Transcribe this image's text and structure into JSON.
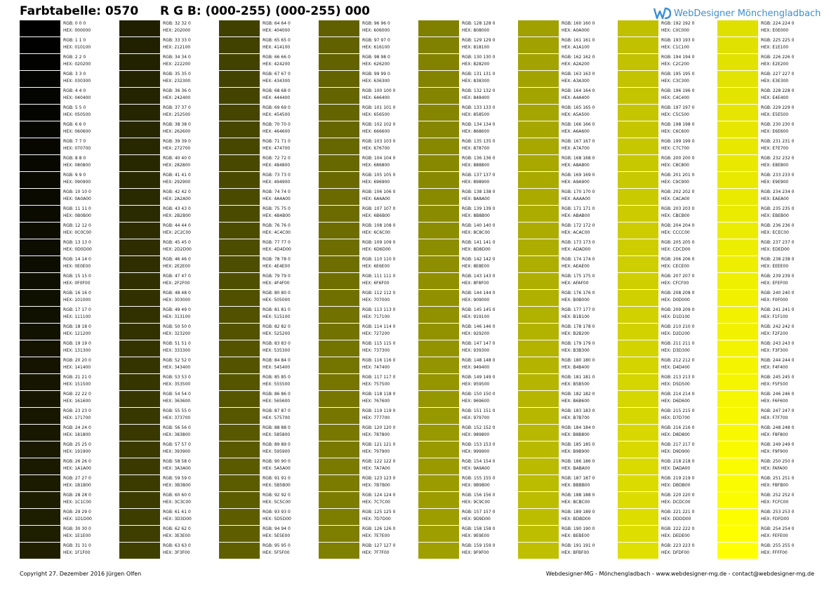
{
  "header": {
    "title": "Farbtabelle: 0570",
    "rgb_range": "R G B: (000-255) (000-255) 000",
    "logo_text": "WebDesigner Mönchengladbach",
    "logo_icon": "wd-logo-icon",
    "logo_color": "#3d8fd4"
  },
  "palette": {
    "columns": 8,
    "rows_per_column": 32,
    "start": 0,
    "end": 255,
    "blue": 0,
    "rgb_prefix": "RGB:",
    "hex_prefix": "HEX:"
  },
  "footer": {
    "copyright": "Copyright 27. Dezember 2016 Jürgen Olfen",
    "contact": "Webdesigner-MG - Mönchengladbach - www.webdesigner-mg.de - contact@webdesigner-mg.de"
  }
}
